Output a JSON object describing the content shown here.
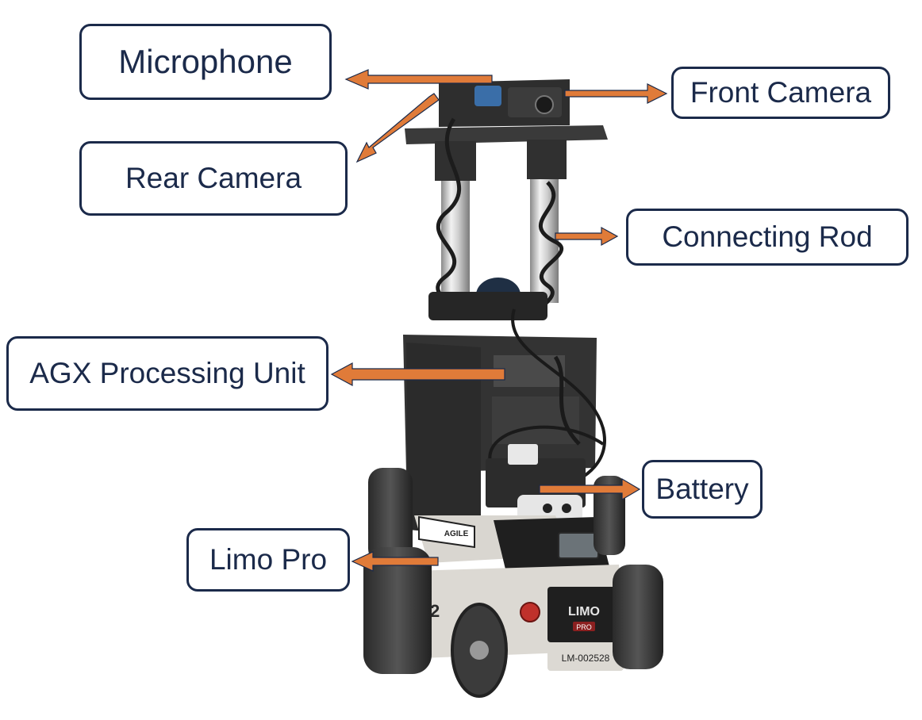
{
  "labels": {
    "microphone": "Microphone",
    "front_camera": "Front Camera",
    "rear_camera": "Rear Camera",
    "connecting_rod": "Connecting Rod",
    "agx_processing_unit": "AGX Processing Unit",
    "battery": "Battery",
    "limo_pro": "Limo Pro"
  },
  "robot_markings": {
    "brand_plate": "LIMO",
    "brand_sub": "PRO",
    "serial": "LM-002528",
    "sticker": "AGILE",
    "side_number": "02"
  },
  "colors": {
    "label_border": "#1b2a4a",
    "label_text": "#1b2a4a",
    "arrow": "#e07b39",
    "arrow_outline": "#1b2a4a",
    "background": "#ffffff"
  }
}
